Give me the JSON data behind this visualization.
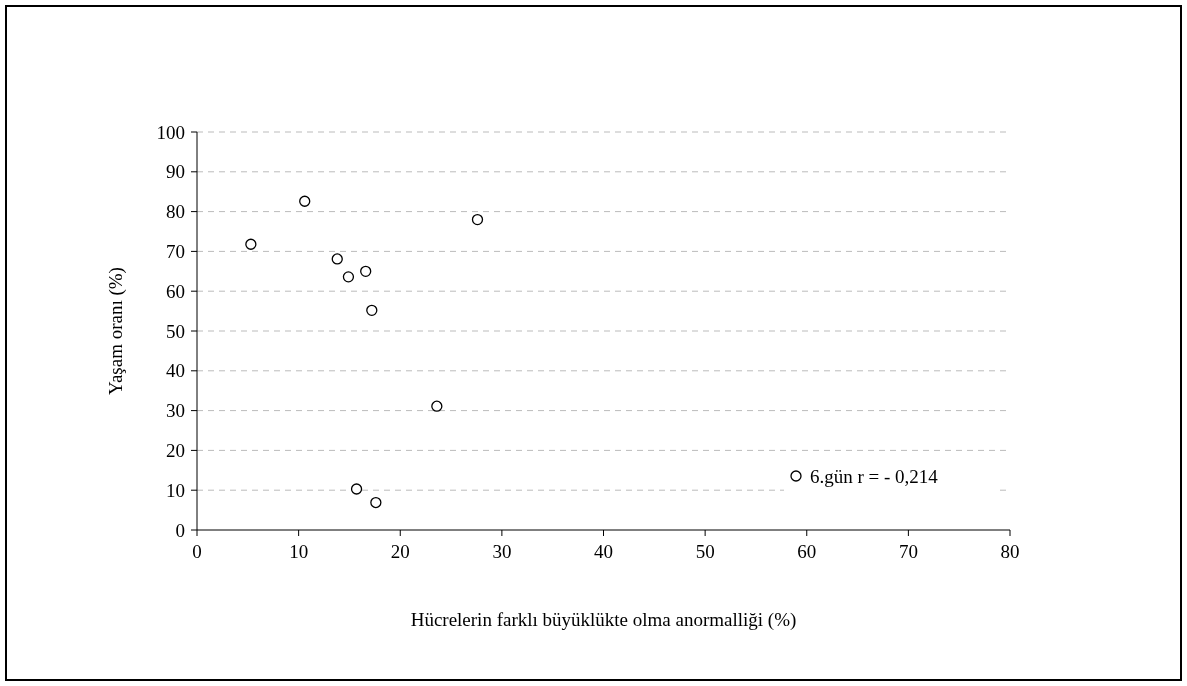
{
  "chart_data": {
    "type": "scatter",
    "xlabel": "Hücrelerin farklı büyüklükte olma anormalliği (%)",
    "ylabel": "Yaşam oranı (%)",
    "x": [
      5.3,
      10.6,
      13.8,
      14.9,
      16.6,
      17.2,
      23.6,
      27.6,
      15.7,
      17.6
    ],
    "series": [
      {
        "name": "6.gün r = - 0,214",
        "color": "#000000",
        "values": [
          71.8,
          82.6,
          68.1,
          63.6,
          65.0,
          55.2,
          31.1,
          78.0,
          10.3,
          6.9
        ]
      }
    ],
    "xlim": [
      0,
      80
    ],
    "xticks": [
      0,
      10,
      20,
      30,
      40,
      50,
      60,
      70,
      80
    ],
    "ylim": [
      0,
      100
    ],
    "yticks": [
      0,
      10,
      20,
      30,
      40,
      50,
      60,
      70,
      80,
      90,
      100
    ],
    "grid": "y",
    "legend": "bottom right",
    "marker": "circle"
  }
}
